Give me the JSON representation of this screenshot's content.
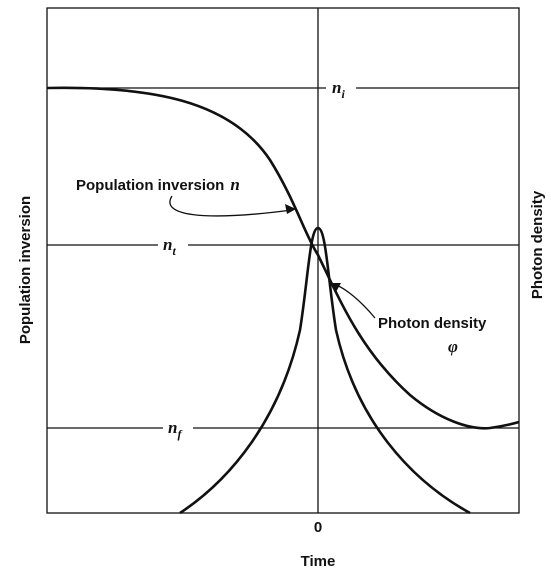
{
  "axes": {
    "x_label": "Time",
    "y_label": "Population inversion",
    "y2_label": "Photon density",
    "x_tick": "0"
  },
  "levels": [
    {
      "symbol": "n",
      "subscript": "i"
    },
    {
      "symbol": "n",
      "subscript": "t"
    },
    {
      "symbol": "n",
      "subscript": "f"
    }
  ],
  "annotations": [
    {
      "text": "Population inversion",
      "symbol": "n"
    },
    {
      "text": "Photon density",
      "symbol": "φ"
    }
  ]
}
